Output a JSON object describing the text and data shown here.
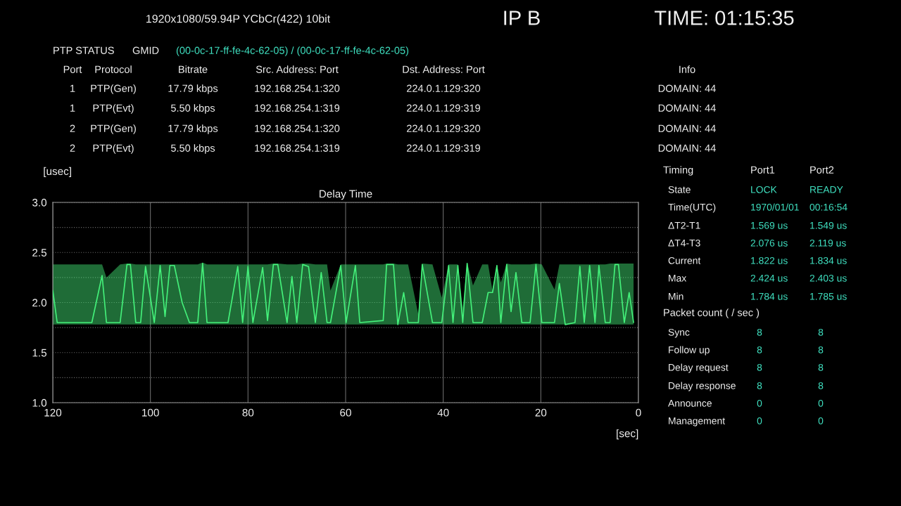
{
  "chart_data": [
    {
      "type": "line",
      "title": "Delay Time",
      "xlabel": "[sec]",
      "ylabel": "[usec]",
      "xlim": [
        120,
        0
      ],
      "xticks": [
        120,
        100,
        80,
        60,
        40,
        20,
        0
      ],
      "ylim": [
        1.0,
        3.0
      ],
      "yticks": [
        {
          "value": 1.0,
          "label": "1.0"
        },
        {
          "value": 1.25,
          "label": null
        },
        1.5,
        {
          "value": 1.75,
          "label": null
        },
        {
          "value": 2.0,
          "label": "2.0"
        },
        {
          "value": 2.25,
          "label": null
        },
        2.5,
        {
          "value": 2.75,
          "label": null
        },
        {
          "value": 3.0,
          "label": "3.0"
        }
      ],
      "grid": true,
      "x": [
        120,
        119.1,
        112,
        109.9,
        109,
        106.2,
        104.8,
        104.1,
        103,
        102,
        101,
        99.2,
        98.0,
        97.0,
        96.0,
        95.1,
        93.5,
        92,
        90.3,
        89.3,
        88.4,
        84.1,
        82.1,
        81.1,
        80.0,
        79.0,
        77.0,
        76.0,
        74.8,
        73.9,
        72.0,
        71.0,
        70.0,
        68.8,
        67.6,
        66.2,
        65.0,
        63.8,
        63.1,
        61.0,
        59.9,
        58.0,
        57.1,
        52.3,
        51.6,
        50.2,
        49.3,
        48.1,
        47.2,
        45.1,
        44.3,
        42.2,
        40.3,
        38.9,
        38.0,
        37.0,
        36.0,
        35.1,
        33.9,
        32.0,
        30.8,
        29.9,
        29.0,
        28.2,
        27.0,
        26.1,
        25.1,
        23.9,
        22.2,
        21.0,
        19.8,
        17.2,
        16.2,
        15.0,
        13.0,
        12.0,
        11.1,
        10.0,
        8.9,
        8.1,
        6.8,
        5.8,
        4.8,
        4.1,
        2.9,
        1.9,
        1.0
      ],
      "series": [
        {
          "color": "#44f07a",
          "values": [
            2.12,
            1.8,
            1.8,
            2.27,
            1.8,
            1.8,
            2.38,
            2.38,
            1.8,
            1.8,
            2.36,
            1.8,
            2.37,
            1.86,
            2.37,
            2.37,
            2.0,
            1.8,
            1.8,
            2.39,
            1.8,
            1.8,
            2.36,
            1.8,
            2.36,
            1.8,
            2.35,
            1.82,
            2.38,
            2.38,
            1.8,
            2.26,
            1.8,
            2.38,
            2.36,
            1.8,
            2.3,
            1.8,
            1.8,
            2.37,
            1.8,
            2.37,
            1.8,
            1.82,
            2.38,
            2.38,
            1.78,
            2.1,
            1.8,
            1.8,
            2.38,
            1.8,
            1.8,
            2.37,
            1.8,
            2.37,
            1.8,
            2.39,
            1.8,
            1.8,
            2.1,
            2.1,
            2.37,
            1.8,
            2.38,
            1.91,
            2.3,
            1.8,
            1.8,
            2.38,
            1.8,
            1.8,
            2.19,
            1.78,
            1.8,
            2.36,
            1.8,
            2.37,
            1.8,
            2.37,
            1.8,
            1.8,
            2.38,
            2.38,
            1.8,
            2.1,
            1.8
          ],
          "lower": [
            1.78,
            1.78,
            1.78,
            1.78,
            1.78,
            1.78,
            1.78,
            1.78,
            1.78,
            1.78,
            1.78,
            1.78,
            1.78,
            1.78,
            1.78,
            1.78,
            1.78,
            1.78,
            1.78,
            1.78,
            1.78,
            1.78,
            1.78,
            1.78,
            1.78,
            1.78,
            1.78,
            1.78,
            1.78,
            1.78,
            1.78,
            1.78,
            1.78,
            1.78,
            1.78,
            1.78,
            1.78,
            1.78,
            1.78,
            1.78,
            1.78,
            1.78,
            1.78,
            1.78,
            1.78,
            1.78,
            1.78,
            1.78,
            1.78,
            1.78,
            1.78,
            1.78,
            1.78,
            1.78,
            1.78,
            1.78,
            1.78,
            1.78,
            1.78,
            1.78,
            1.78,
            1.78,
            1.78,
            1.78,
            1.78,
            1.78,
            1.78,
            1.78,
            1.78,
            1.78,
            1.78,
            1.78,
            1.78,
            1.78,
            1.78,
            1.78,
            1.78,
            1.78,
            1.78,
            1.78,
            1.78,
            1.78,
            1.78,
            1.78,
            1.78,
            1.78,
            1.78
          ],
          "upper": [
            2.38,
            2.38,
            2.38,
            2.38,
            2.25,
            2.38,
            2.39,
            2.39,
            2.38,
            2.38,
            2.38,
            2.38,
            2.38,
            2.38,
            2.38,
            2.38,
            2.38,
            2.38,
            2.38,
            2.4,
            2.38,
            2.38,
            2.38,
            2.38,
            2.38,
            2.38,
            2.38,
            2.38,
            2.39,
            2.39,
            2.38,
            2.38,
            2.38,
            2.39,
            2.39,
            2.38,
            2.38,
            2.38,
            2.12,
            2.38,
            2.38,
            2.38,
            2.38,
            2.38,
            2.39,
            2.39,
            2.38,
            2.38,
            2.38,
            1.88,
            2.39,
            2.38,
            2.05,
            2.38,
            2.38,
            2.38,
            1.95,
            2.4,
            2.17,
            2.38,
            2.38,
            2.12,
            2.38,
            2.2,
            2.39,
            2.38,
            2.38,
            2.38,
            2.38,
            2.39,
            2.38,
            2.13,
            2.38,
            2.38,
            2.38,
            2.38,
            2.38,
            2.38,
            2.38,
            2.38,
            2.38,
            2.39,
            2.39,
            2.39,
            2.39,
            2.39,
            2.39
          ]
        }
      ]
    },
    {
      "type": "other",
      "annotations": [
        "1920x1080/59.94P YCbCr(422) 10bit",
        "IP B",
        "TIME: 01:15:35",
        "PTP STATUS",
        "GMID",
        "(00-0c-17-ff-fe-4c-62-05) / (00-0c-17-ff-fe-4c-62-05)"
      ]
    },
    {
      "type": "other",
      "annotations": [
        "Port",
        "Protocol",
        "Bitrate",
        "Src. Address: Port",
        "Dst. Address: Port",
        "Info",
        "1",
        "PTP(Gen)",
        "17.79 kbps",
        "192.168.254.1:320",
        "224.0.1.129:320",
        "DOMAIN: 44",
        "1",
        "PTP(Evt)",
        "5.50 kbps",
        "192.168.254.1:319",
        "224.0.1.129:319",
        "DOMAIN: 44",
        "2",
        "PTP(Gen)",
        "17.79 kbps",
        "192.168.254.1:320",
        "224.0.1.129:320",
        "DOMAIN: 44",
        "2",
        "PTP(Evt)",
        "5.50 kbps",
        "192.168.254.1:319",
        "224.0.1.129:319",
        "DOMAIN: 44"
      ]
    },
    {
      "type": "other",
      "annotations": [
        "Timing",
        "Port1",
        "Port2",
        "State",
        "LOCK",
        "READY",
        "Time(UTC)",
        "1970/01/01",
        "00:16:54",
        "ΔT2-T1",
        "1.569 us",
        "1.549 us",
        "ΔT4-T3",
        "2.076 us",
        "2.119 us",
        "Current",
        "1.822 us",
        "1.834 us",
        "Max",
        "2.424 us",
        "2.403 us",
        "Min",
        "1.784 us",
        "1.785 us"
      ]
    },
    {
      "type": "other",
      "title": "Packet count ( / sec )",
      "annotations": [
        "Sync",
        "8",
        "8",
        "Follow up",
        "8",
        "8",
        "Delay request",
        "8",
        "8",
        "Delay response",
        "8",
        "8",
        "Announce",
        "0",
        "0",
        "Management",
        "0",
        "0"
      ]
    }
  ]
}
